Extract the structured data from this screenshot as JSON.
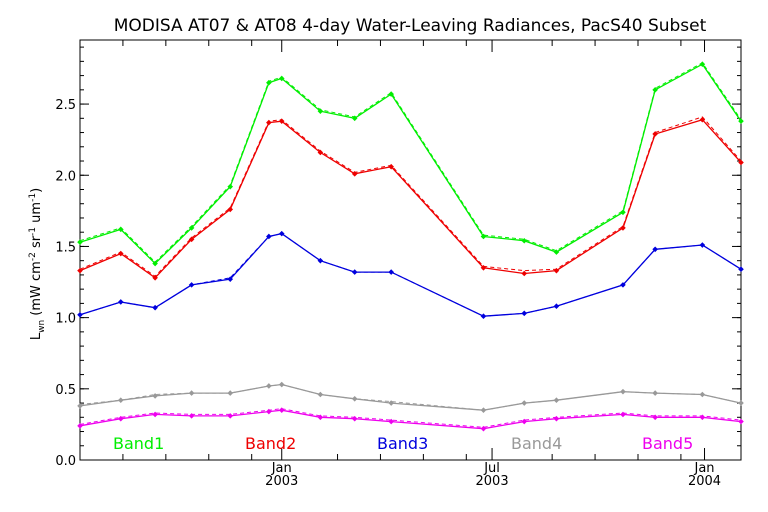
{
  "chart_data": {
    "type": "line",
    "title": "MODISA AT07 & AT08 4-day Water-Leaving Radiances, PacS40 Subset",
    "ylabel": {
      "main": "L",
      "sub": "wn",
      "units_open": " (mW cm",
      "exp1": "-2",
      "mid1": " sr",
      "exp2": "-1",
      "mid2": " um",
      "exp3": "-1",
      "units_close": ")"
    },
    "ylim": [
      0,
      2.95
    ],
    "xlim": [
      0,
      15.4
    ],
    "y_ticks": [
      0.0,
      0.5,
      1.0,
      1.5,
      2.0,
      2.5
    ],
    "y_tick_labels": [
      "0.0",
      "0.5",
      "1.0",
      "1.5",
      "2.0",
      "2.5"
    ],
    "y_minor_step": 0.1,
    "x_minor_ticks": [
      1,
      2,
      3,
      4,
      6,
      7,
      8,
      9,
      11,
      12,
      13,
      14
    ],
    "x_major_ticks": [
      {
        "x": 4.7,
        "month": "Jan",
        "year": "2003"
      },
      {
        "x": 9.6,
        "month": "Jul",
        "year": "2003"
      },
      {
        "x": 14.55,
        "month": "Jan",
        "year": "2004"
      }
    ],
    "x": [
      0,
      0.95,
      1.75,
      2.6,
      3.5,
      4.4,
      4.7,
      5.6,
      6.4,
      7.25,
      9.4,
      10.35,
      11.1,
      12.65,
      13.4,
      14.5,
      15.4
    ],
    "series": [
      {
        "name": "Band1",
        "color": "#00ee00",
        "values": [
          1.53,
          1.62,
          1.38,
          1.63,
          1.92,
          2.65,
          2.68,
          2.45,
          2.4,
          2.57,
          1.57,
          1.54,
          1.46,
          1.74,
          2.6,
          2.78,
          2.38
        ],
        "values_dashed": [
          1.54,
          1.63,
          1.39,
          1.64,
          1.93,
          2.66,
          2.69,
          2.46,
          2.41,
          2.58,
          1.58,
          1.55,
          1.47,
          1.75,
          2.61,
          2.79,
          2.39
        ]
      },
      {
        "name": "Band2",
        "color": "#ee0000",
        "values": [
          1.33,
          1.45,
          1.28,
          1.55,
          1.76,
          2.37,
          2.38,
          2.16,
          2.01,
          2.06,
          1.35,
          1.31,
          1.33,
          1.63,
          2.29,
          2.39,
          2.09
        ],
        "values_dashed": [
          1.34,
          1.46,
          1.29,
          1.56,
          1.77,
          2.38,
          2.39,
          2.17,
          2.02,
          2.07,
          1.36,
          1.33,
          1.34,
          1.64,
          2.3,
          2.41,
          2.1
        ]
      },
      {
        "name": "Band3",
        "color": "#0000dd",
        "values": [
          1.02,
          1.11,
          1.07,
          1.23,
          1.27,
          1.57,
          1.59,
          1.4,
          1.32,
          1.32,
          1.01,
          1.03,
          1.08,
          1.23,
          1.48,
          1.51,
          1.34
        ],
        "values_dashed": [
          1.02,
          1.11,
          1.07,
          1.23,
          1.28,
          1.57,
          1.59,
          1.4,
          1.32,
          1.32,
          1.01,
          1.03,
          1.08,
          1.23,
          1.48,
          1.51,
          1.34
        ]
      },
      {
        "name": "Band4",
        "color": "#999999",
        "values": [
          0.38,
          0.42,
          0.45,
          0.47,
          0.47,
          0.52,
          0.53,
          0.46,
          0.43,
          0.4,
          0.35,
          0.4,
          0.42,
          0.48,
          0.47,
          0.46,
          0.4
        ],
        "values_dashed": [
          0.39,
          0.42,
          0.46,
          0.47,
          0.47,
          0.52,
          0.53,
          0.46,
          0.43,
          0.41,
          0.35,
          0.4,
          0.42,
          0.48,
          0.47,
          0.46,
          0.4
        ]
      },
      {
        "name": "Band5",
        "color": "#ee00ee",
        "values": [
          0.24,
          0.29,
          0.32,
          0.31,
          0.31,
          0.34,
          0.35,
          0.3,
          0.29,
          0.27,
          0.22,
          0.27,
          0.29,
          0.32,
          0.3,
          0.3,
          0.27
        ],
        "values_dashed": [
          0.25,
          0.3,
          0.33,
          0.32,
          0.32,
          0.35,
          0.36,
          0.31,
          0.3,
          0.28,
          0.23,
          0.28,
          0.3,
          0.33,
          0.31,
          0.31,
          0.28
        ]
      }
    ],
    "legend": {
      "placement": "bottom-inside",
      "entries": [
        "Band1",
        "Band2",
        "Band3",
        "Band4",
        "Band5"
      ]
    }
  }
}
